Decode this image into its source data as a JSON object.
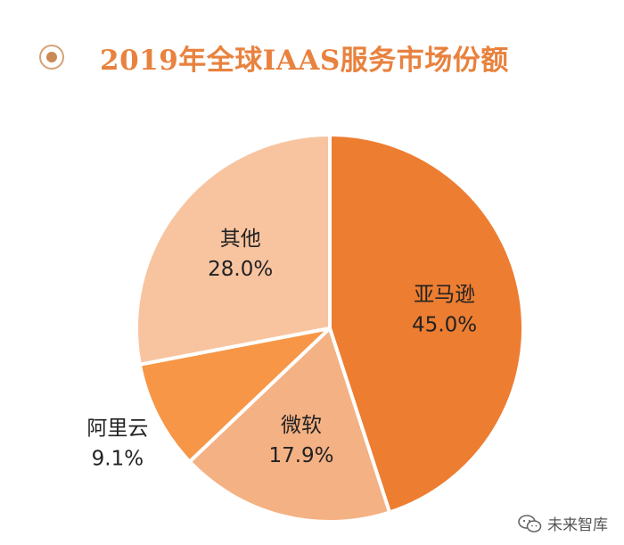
{
  "title": "2019年全球IAAS服务市场份额",
  "watermark": "未来智库",
  "colors": {
    "title": "#e8823e",
    "bullet": "#c98a55"
  },
  "chart_data": {
    "type": "pie",
    "title": "2019年全球IAAS服务市场份额",
    "unit": "%",
    "slices": [
      {
        "label": "亚马逊",
        "value": 45.0,
        "value_label": "45.0%",
        "color": "#ed7d31"
      },
      {
        "label": "微软",
        "value": 17.9,
        "value_label": "17.9%",
        "color": "#f4b183"
      },
      {
        "label": "阿里云",
        "value": 9.1,
        "value_label": "9.1%",
        "color": "#f79646"
      },
      {
        "label": "其他",
        "value": 28.0,
        "value_label": "28.0%",
        "color": "#f8c4a0"
      }
    ],
    "start": "12 o'clock",
    "direction": "clockwise"
  }
}
